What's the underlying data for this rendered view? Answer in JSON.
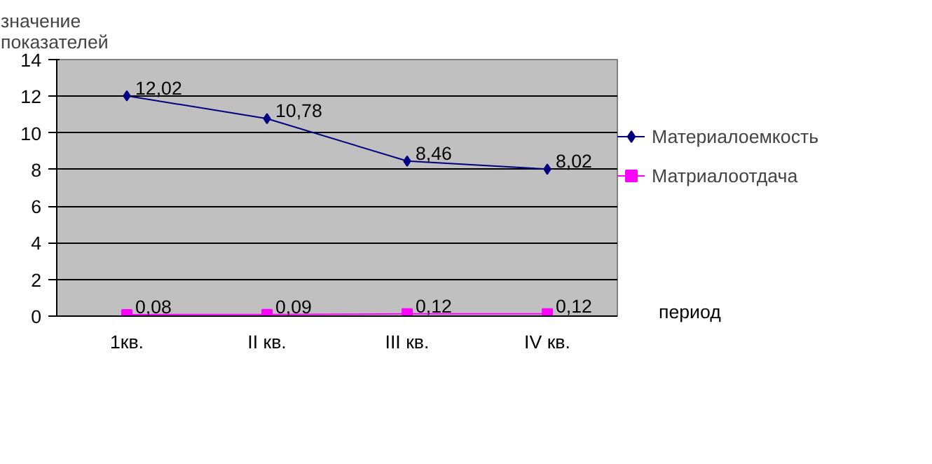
{
  "chart_data": {
    "type": "line",
    "ylabel": "значение\nпоказателей",
    "xlabel": "период",
    "categories": [
      "1кв.",
      "II кв.",
      "III кв.",
      "IV кв."
    ],
    "series": [
      {
        "name": "Материалоемкость",
        "color": "#000080",
        "marker": "diamond",
        "values": [
          12.02,
          10.78,
          8.46,
          8.02
        ],
        "value_labels": [
          "12,02",
          "10,78",
          "8,46",
          "8,02"
        ]
      },
      {
        "name": "Матриалоотдача",
        "color": "#ff00ff",
        "marker": "square",
        "values": [
          0.08,
          0.09,
          0.12,
          0.12
        ],
        "value_labels": [
          "0,08",
          "0,09",
          "0,12",
          "0,12"
        ]
      }
    ],
    "ylim": [
      0,
      14
    ],
    "yticks": [
      0,
      2,
      4,
      6,
      8,
      10,
      12,
      14
    ],
    "grid": "y",
    "legend": "right"
  }
}
